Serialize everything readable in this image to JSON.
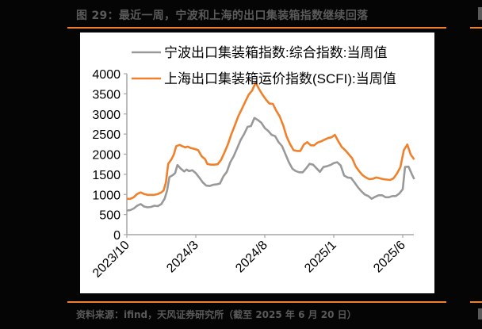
{
  "figure": {
    "title": "图 29：最近一周，宁波和上海的出口集装箱指数继续回落",
    "source": "资料来源：ifind，天风证券研究所（截至 2025 年 6 月 20 日）"
  },
  "colors": {
    "accent_rule": "#f0802a",
    "series_ningbo": "#999999",
    "series_scfi": "#f0802a",
    "axis": "#a6a6a6",
    "text": "#000000",
    "caption_text": "#5a5a5a"
  },
  "chart_data": {
    "type": "line",
    "title": "",
    "xlabel": "",
    "ylabel": "",
    "ylim": [
      0,
      4000
    ],
    "yticks": [
      0,
      500,
      1000,
      1500,
      2000,
      2500,
      3000,
      3500,
      4000
    ],
    "xtick_labels": [
      "2023/10",
      "2024/3",
      "2024/8",
      "2025/1",
      "2025/6"
    ],
    "grid": false,
    "legend_position": "top-inside",
    "x_range": [
      "2023/10",
      "2025/6/20"
    ],
    "series": [
      {
        "name": "宁波出口集装箱指数:综合指数:当周值",
        "color": "#999999",
        "points": [
          [
            0,
            600
          ],
          [
            3,
            610
          ],
          [
            6,
            650
          ],
          [
            9,
            720
          ],
          [
            12,
            760
          ],
          [
            15,
            700
          ],
          [
            18,
            680
          ],
          [
            21,
            690
          ],
          [
            24,
            720
          ],
          [
            27,
            710
          ],
          [
            30,
            760
          ],
          [
            33,
            900
          ],
          [
            35,
            1100
          ],
          [
            37,
            1430
          ],
          [
            40,
            1480
          ],
          [
            42,
            1530
          ],
          [
            44,
            1730
          ],
          [
            47,
            1640
          ],
          [
            50,
            1570
          ],
          [
            52,
            1620
          ],
          [
            54,
            1580
          ],
          [
            57,
            1600
          ],
          [
            60,
            1530
          ],
          [
            63,
            1420
          ],
          [
            66,
            1300
          ],
          [
            69,
            1220
          ],
          [
            72,
            1210
          ],
          [
            75,
            1240
          ],
          [
            78,
            1250
          ],
          [
            81,
            1270
          ],
          [
            84,
            1450
          ],
          [
            87,
            1560
          ],
          [
            90,
            1800
          ],
          [
            93,
            1950
          ],
          [
            96,
            2150
          ],
          [
            99,
            2350
          ],
          [
            102,
            2500
          ],
          [
            105,
            2680
          ],
          [
            108,
            2700
          ],
          [
            111,
            2900
          ],
          [
            114,
            2850
          ],
          [
            117,
            2780
          ],
          [
            120,
            2650
          ],
          [
            123,
            2580
          ],
          [
            126,
            2480
          ],
          [
            129,
            2450
          ],
          [
            132,
            2300
          ],
          [
            135,
            2200
          ],
          [
            138,
            2000
          ],
          [
            141,
            1800
          ],
          [
            144,
            1640
          ],
          [
            147,
            1580
          ],
          [
            150,
            1550
          ],
          [
            153,
            1550
          ],
          [
            156,
            1650
          ],
          [
            159,
            1760
          ],
          [
            162,
            1740
          ],
          [
            165,
            1650
          ],
          [
            168,
            1560
          ],
          [
            171,
            1680
          ],
          [
            174,
            1700
          ],
          [
            177,
            1730
          ],
          [
            180,
            1780
          ],
          [
            183,
            1800
          ],
          [
            186,
            1720
          ],
          [
            189,
            1470
          ],
          [
            192,
            1420
          ],
          [
            195,
            1410
          ],
          [
            198,
            1300
          ],
          [
            201,
            1180
          ],
          [
            204,
            1080
          ],
          [
            207,
            1000
          ],
          [
            210,
            960
          ],
          [
            213,
            890
          ],
          [
            216,
            940
          ],
          [
            219,
            980
          ],
          [
            222,
            980
          ],
          [
            225,
            930
          ],
          [
            228,
            930
          ],
          [
            231,
            960
          ],
          [
            234,
            960
          ],
          [
            237,
            1020
          ],
          [
            240,
            1130
          ],
          [
            242,
            1680
          ],
          [
            245,
            1690
          ],
          [
            248,
            1500
          ],
          [
            250,
            1380
          ]
        ]
      },
      {
        "name": "上海出口集装箱运价指数(SCFI):当周值",
        "color": "#f0802a",
        "points": [
          [
            0,
            890
          ],
          [
            3,
            890
          ],
          [
            6,
            930
          ],
          [
            9,
            1010
          ],
          [
            12,
            1050
          ],
          [
            15,
            1010
          ],
          [
            18,
            990
          ],
          [
            21,
            990
          ],
          [
            24,
            990
          ],
          [
            27,
            1010
          ],
          [
            30,
            1050
          ],
          [
            32,
            1100
          ],
          [
            34,
            1300
          ],
          [
            36,
            1760
          ],
          [
            39,
            1880
          ],
          [
            41,
            2000
          ],
          [
            43,
            2200
          ],
          [
            46,
            2230
          ],
          [
            49,
            2190
          ],
          [
            51,
            2170
          ],
          [
            53,
            2190
          ],
          [
            56,
            2150
          ],
          [
            59,
            2130
          ],
          [
            62,
            2100
          ],
          [
            65,
            1950
          ],
          [
            68,
            1880
          ],
          [
            70,
            1760
          ],
          [
            73,
            1740
          ],
          [
            76,
            1740
          ],
          [
            79,
            1750
          ],
          [
            82,
            1860
          ],
          [
            85,
            2050
          ],
          [
            88,
            2250
          ],
          [
            91,
            2500
          ],
          [
            94,
            2720
          ],
          [
            97,
            2950
          ],
          [
            100,
            3120
          ],
          [
            103,
            3300
          ],
          [
            106,
            3480
          ],
          [
            109,
            3580
          ],
          [
            112,
            3780
          ],
          [
            115,
            3620
          ],
          [
            118,
            3480
          ],
          [
            121,
            3360
          ],
          [
            124,
            3260
          ],
          [
            127,
            3250
          ],
          [
            130,
            3080
          ],
          [
            133,
            2940
          ],
          [
            136,
            2720
          ],
          [
            139,
            2440
          ],
          [
            142,
            2250
          ],
          [
            145,
            2100
          ],
          [
            148,
            2080
          ],
          [
            151,
            2080
          ],
          [
            154,
            2240
          ],
          [
            157,
            2300
          ],
          [
            160,
            2220
          ],
          [
            163,
            2220
          ],
          [
            166,
            2290
          ],
          [
            169,
            2320
          ],
          [
            172,
            2360
          ],
          [
            175,
            2400
          ],
          [
            178,
            2420
          ],
          [
            181,
            2480
          ],
          [
            184,
            2320
          ],
          [
            187,
            2180
          ],
          [
            190,
            2100
          ],
          [
            193,
            2000
          ],
          [
            196,
            1900
          ],
          [
            199,
            1700
          ],
          [
            202,
            1580
          ],
          [
            205,
            1480
          ],
          [
            208,
            1420
          ],
          [
            211,
            1380
          ],
          [
            214,
            1390
          ],
          [
            217,
            1420
          ],
          [
            220,
            1400
          ],
          [
            223,
            1380
          ],
          [
            226,
            1370
          ],
          [
            229,
            1360
          ],
          [
            232,
            1400
          ],
          [
            235,
            1520
          ],
          [
            238,
            1680
          ],
          [
            241,
            2100
          ],
          [
            244,
            2240
          ],
          [
            247,
            1990
          ],
          [
            250,
            1870
          ]
        ]
      }
    ]
  }
}
